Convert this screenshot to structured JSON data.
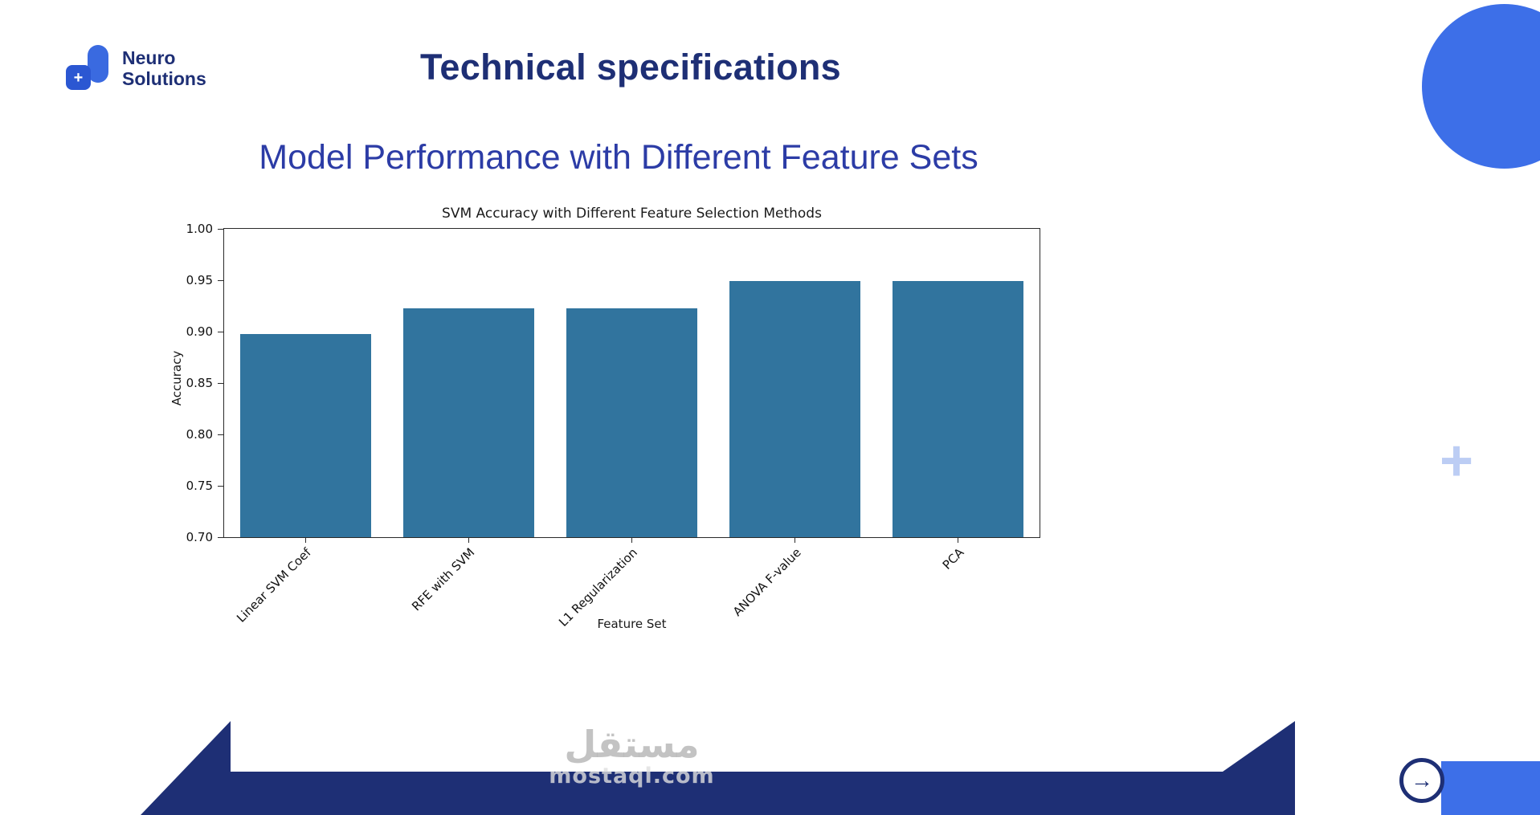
{
  "logo": {
    "line1": "Neuro",
    "line2": "Solutions"
  },
  "header": {
    "title": "Technical specifications"
  },
  "subtitle": "Model Performance with Different Feature Sets",
  "chart_data": {
    "type": "bar",
    "title": "SVM Accuracy with Different Feature Selection Methods",
    "categories": [
      "Linear SVM Coef",
      "RFE with SVM",
      "L1 Regularization",
      "ANOVA F-value",
      "PCA"
    ],
    "values": [
      0.898,
      0.923,
      0.923,
      0.949,
      0.949
    ],
    "xlabel": "Feature Set",
    "ylabel": "Accuracy",
    "ylim": [
      0.7,
      1.0
    ],
    "yticks": [
      0.7,
      0.75,
      0.8,
      0.85,
      0.9,
      0.95,
      1.0
    ],
    "bar_color": "#31749E",
    "grid": false
  },
  "watermark": {
    "arabic": "مستقل",
    "domain": "mostaql.com"
  },
  "icons": {
    "logo_plus": "+",
    "plus": "+",
    "arrow_right": "→"
  },
  "colors": {
    "accent": "#3D6FE8",
    "navy": "#1E2F75",
    "subtitle": "#2C3CA6",
    "plus": "#BCCDF4"
  }
}
